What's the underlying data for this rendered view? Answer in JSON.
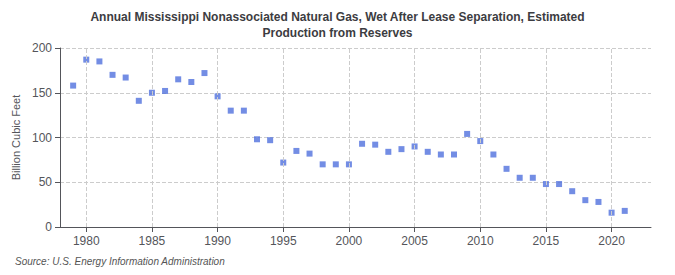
{
  "chart_data": {
    "type": "scatter",
    "title": "Annual Mississippi Nonassociated Natural Gas, Wet After Lease Separation, Estimated\nProduction from Reserves",
    "ylabel": "Billion Cubic Feet",
    "source": "Source: U.S. Energy Information Administration",
    "x": [
      1979,
      1980,
      1981,
      1982,
      1983,
      1984,
      1985,
      1986,
      1987,
      1988,
      1989,
      1990,
      1991,
      1992,
      1993,
      1994,
      1995,
      1996,
      1997,
      1998,
      1999,
      2000,
      2001,
      2002,
      2003,
      2004,
      2005,
      2006,
      2007,
      2008,
      2009,
      2010,
      2011,
      2012,
      2013,
      2014,
      2015,
      2016,
      2017,
      2018,
      2019,
      2020,
      2021
    ],
    "values": [
      158,
      187,
      185,
      170,
      167,
      141,
      150,
      152,
      165,
      162,
      172,
      146,
      130,
      130,
      98,
      97,
      72,
      85,
      82,
      70,
      70,
      70,
      93,
      92,
      84,
      87,
      90,
      84,
      81,
      81,
      104,
      96,
      81,
      65,
      55,
      55,
      48,
      48,
      40,
      30,
      28,
      16,
      18
    ],
    "xlim": [
      1978,
      2023
    ],
    "xticks": [
      1980,
      1985,
      1990,
      1995,
      2000,
      2005,
      2010,
      2015,
      2020
    ],
    "ylim": [
      0,
      200
    ],
    "yticks": [
      0,
      50,
      100,
      150,
      200
    ],
    "marker": "square",
    "grid": true
  }
}
